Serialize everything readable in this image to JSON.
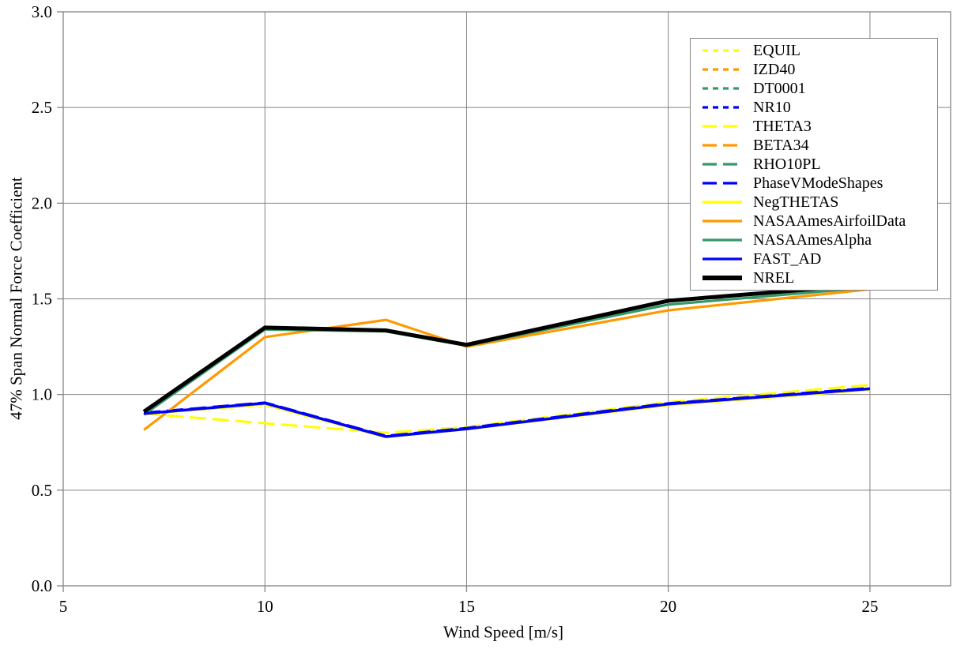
{
  "chart_data": {
    "type": "line",
    "title": "",
    "xlabel": "Wind Speed [m/s]",
    "ylabel": "47% Span Normal Force Coefficient",
    "xlim": [
      5,
      27
    ],
    "ylim": [
      0,
      3
    ],
    "x_ticks": [
      5,
      10,
      15,
      20,
      25
    ],
    "y_ticks": [
      0,
      0.5,
      1,
      1.5,
      2,
      2.5,
      3
    ],
    "x_gridlines": [
      10,
      15,
      20,
      25
    ],
    "y_gridlines": [
      0.5,
      1,
      1.5,
      2,
      2.5
    ],
    "grid": true,
    "grid_color": "#858585",
    "axis_color": "#858585",
    "text_color": "#000000",
    "legend_position": "top-right",
    "x": [
      7,
      10,
      13,
      15,
      20,
      25
    ],
    "series": [
      {
        "name": "EQUIL",
        "color": "#FFFF00",
        "dash": "short",
        "width": 3,
        "values": [
          0.9,
          0.945,
          0.78,
          0.82,
          0.945,
          1.025
        ]
      },
      {
        "name": "IZD40",
        "color": "#FF9900",
        "dash": "short",
        "width": 3,
        "values": [
          0.9,
          0.95,
          0.78,
          0.82,
          0.945,
          1.025
        ]
      },
      {
        "name": "DT0001",
        "color": "#339966",
        "dash": "short",
        "width": 3,
        "values": [
          0.9,
          0.95,
          0.78,
          0.82,
          0.946,
          1.026
        ]
      },
      {
        "name": "NR10",
        "color": "#0000FF",
        "dash": "short",
        "width": 3,
        "values": [
          0.9,
          0.95,
          0.78,
          0.82,
          0.947,
          1.027
        ]
      },
      {
        "name": "THETA3",
        "color": "#FFFF00",
        "dash": "long",
        "width": 3,
        "values": [
          0.9,
          0.85,
          0.8,
          0.83,
          0.96,
          1.05
        ]
      },
      {
        "name": "BETA34",
        "color": "#FF9900",
        "dash": "long",
        "width": 3,
        "values": [
          0.9,
          0.95,
          0.78,
          0.82,
          0.946,
          1.026
        ]
      },
      {
        "name": "RHO10PL",
        "color": "#339966",
        "dash": "long",
        "width": 3,
        "values": [
          0.9,
          0.951,
          0.781,
          0.821,
          0.947,
          1.027
        ]
      },
      {
        "name": "PhaseVModeShapes",
        "color": "#0000FF",
        "dash": "long",
        "width": 3,
        "values": [
          0.905,
          0.958,
          0.784,
          0.825,
          0.954,
          1.034
        ]
      },
      {
        "name": "NegTHETAS",
        "color": "#FFFF00",
        "dash": "solid",
        "width": 3,
        "values": [
          0.898,
          0.949,
          0.777,
          0.818,
          0.945,
          1.025
        ]
      },
      {
        "name": "NASAAmesAirfoilData",
        "color": "#FF9900",
        "dash": "solid",
        "width": 3.2,
        "values": [
          0.815,
          1.3,
          1.39,
          1.25,
          1.44,
          1.55
        ]
      },
      {
        "name": "NASAAmesAlpha",
        "color": "#339966",
        "dash": "solid",
        "width": 3.2,
        "values": [
          0.895,
          1.34,
          1.33,
          1.255,
          1.47,
          1.56
        ]
      },
      {
        "name": "FAST_AD",
        "color": "#0000FF",
        "dash": "solid",
        "width": 3.5,
        "values": [
          0.9,
          0.955,
          0.78,
          0.82,
          0.95,
          1.03
        ]
      },
      {
        "name": "NREL",
        "color": "#000000",
        "dash": "solid",
        "width": 5,
        "values": [
          0.91,
          1.35,
          1.335,
          1.26,
          1.49,
          1.575
        ]
      }
    ]
  }
}
